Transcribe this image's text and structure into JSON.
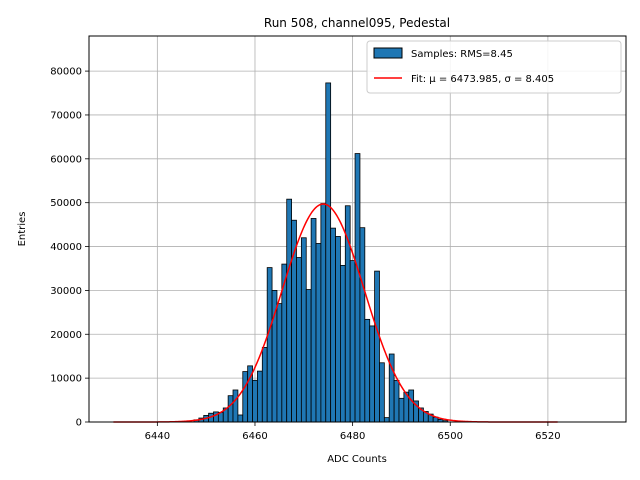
{
  "chart_data": {
    "type": "bar",
    "title": "Run 508, channel095, Pedestal",
    "xlabel": "ADC Counts",
    "ylabel": "Entries",
    "xlim": [
      6426,
      6536
    ],
    "ylim": [
      0,
      88000
    ],
    "x_ticks": [
      6440,
      6460,
      6480,
      6500,
      6520
    ],
    "y_ticks": [
      0,
      10000,
      20000,
      30000,
      40000,
      50000,
      60000,
      70000,
      80000
    ],
    "grid": true,
    "legend_position": "top-right",
    "bar_color": "#1f77b4",
    "fit_color": "#ff0000",
    "series": [
      {
        "name": "Samples: RMS=8.45",
        "kind": "histogram",
        "bin_width": 1,
        "x": [
          6448,
          6449,
          6450,
          6451,
          6452,
          6453,
          6454,
          6455,
          6456,
          6457,
          6458,
          6459,
          6460,
          6461,
          6462,
          6463,
          6464,
          6465,
          6466,
          6467,
          6468,
          6469,
          6470,
          6471,
          6472,
          6473,
          6474,
          6475,
          6476,
          6477,
          6478,
          6479,
          6480,
          6481,
          6482,
          6483,
          6484,
          6485,
          6486,
          6487,
          6488,
          6489,
          6490,
          6491,
          6492,
          6493,
          6494,
          6495,
          6496,
          6497,
          6498,
          6499
        ],
        "values": [
          500,
          900,
          1500,
          2000,
          2300,
          2200,
          3200,
          6000,
          7300,
          1600,
          11500,
          12800,
          9500,
          11600,
          17000,
          35200,
          30000,
          27000,
          36000,
          50800,
          46000,
          37500,
          42000,
          30200,
          46400,
          40700,
          49800,
          77300,
          44200,
          42300,
          35700,
          49300,
          36800,
          61200,
          44300,
          23400,
          21900,
          34400,
          13500,
          1000,
          15500,
          9500,
          5400,
          6800,
          7300,
          4800,
          3200,
          2400,
          1800,
          1100,
          600,
          300
        ]
      },
      {
        "name": "Fit: μ = 6473.985, σ = 8.405",
        "kind": "gaussian",
        "mu": 6473.985,
        "sigma": 8.405,
        "amplitude": 49700,
        "x_range": [
          6431,
          6522
        ]
      }
    ]
  }
}
